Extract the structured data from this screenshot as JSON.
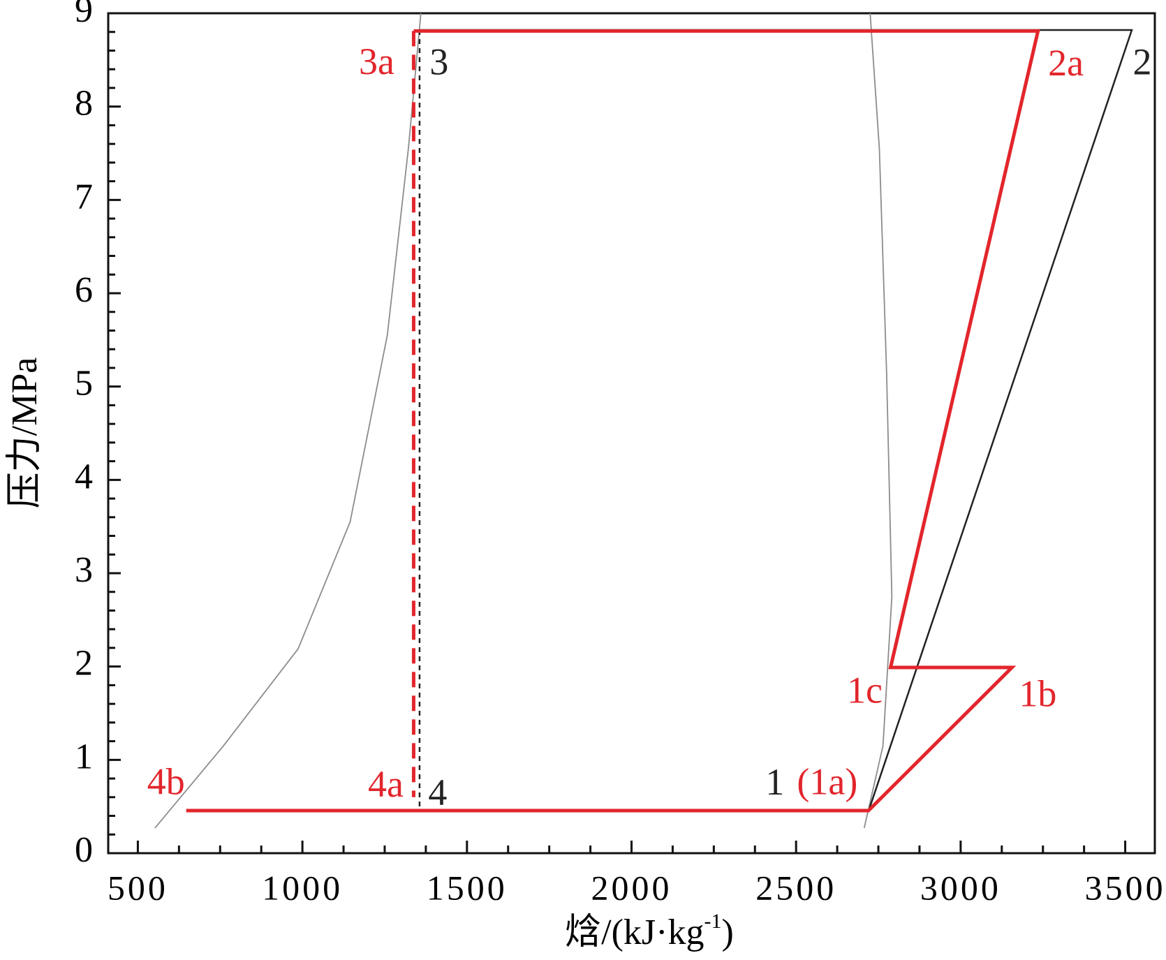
{
  "chart_data": {
    "type": "line",
    "ylabel": "压力/MPa",
    "xlabel": [
      "焓/(kJ·kg",
      "-1",
      ")"
    ],
    "xlim": [
      410,
      3590
    ],
    "ylim": [
      0,
      9
    ],
    "xticks": [
      500,
      1000,
      1500,
      2000,
      2500,
      3000,
      3500
    ],
    "yticks": [
      0,
      1,
      2,
      3,
      4,
      5,
      6,
      7,
      8,
      9
    ],
    "xticks_minor": [
      625,
      750,
      875,
      1125,
      1250,
      1375,
      1625,
      1750,
      1875,
      2125,
      2250,
      2375,
      2625,
      2750,
      2875,
      3125,
      3250,
      3375
    ],
    "yticks_minor": [
      0.2,
      0.4,
      0.6,
      0.8,
      1.2,
      1.4,
      1.6,
      1.8,
      2.2,
      2.4,
      2.6,
      2.8,
      3.2,
      3.4,
      3.6,
      3.8,
      4.2,
      4.4,
      4.6,
      4.8,
      5.2,
      5.4,
      5.6,
      5.8,
      6.2,
      6.4,
      6.6,
      6.8,
      7.2,
      7.4,
      7.6,
      7.8,
      8.2,
      8.4,
      8.6,
      8.8
    ],
    "series": [
      {
        "color": "#8c8c8c",
        "style": "thin",
        "x": [
          552,
          760,
          987,
          1145,
          1258,
          1322,
          1360
        ],
        "values": [
          0.27,
          1.15,
          2.19,
          3.55,
          5.55,
          7.55,
          9
        ],
        "point_labels": [
          null,
          null,
          null,
          null,
          null,
          null,
          null
        ]
      },
      {
        "color": "#8c8c8c",
        "style": "thin",
        "x": [
          2707,
          2764,
          2791,
          2775,
          2753,
          2725
        ],
        "values": [
          0.27,
          1.15,
          2.75,
          5.15,
          7.55,
          9
        ],
        "point_labels": [
          null,
          null,
          null,
          null,
          null,
          null
        ]
      },
      {
        "color": "#222222",
        "style": "solid",
        "x": [
          1356,
          2720,
          3520,
          1356
        ],
        "values": [
          0.45,
          0.45,
          8.82,
          8.82
        ],
        "point_labels": [
          "4",
          "1",
          "2",
          "3"
        ]
      },
      {
        "color": "#222222",
        "style": "dashed",
        "x": [
          1356,
          1356
        ],
        "values": [
          8.82,
          0.45
        ],
        "point_labels": [
          null,
          null
        ]
      },
      {
        "color": "#e2262c",
        "style": "solid",
        "x": [
          647,
          2720,
          3156,
          2787,
          3235,
          1338
        ],
        "values": [
          0.456,
          0.456,
          1.99,
          1.99,
          8.81,
          8.81
        ],
        "point_labels": [
          "4b",
          "(1a)",
          "1b",
          "1c",
          "2a",
          "3a"
        ]
      },
      {
        "color": "#e2262c",
        "style": "reddash",
        "x": [
          1338,
          1338
        ],
        "values": [
          8.81,
          0.6
        ],
        "point_labels": [
          null,
          "4a"
        ]
      }
    ]
  }
}
